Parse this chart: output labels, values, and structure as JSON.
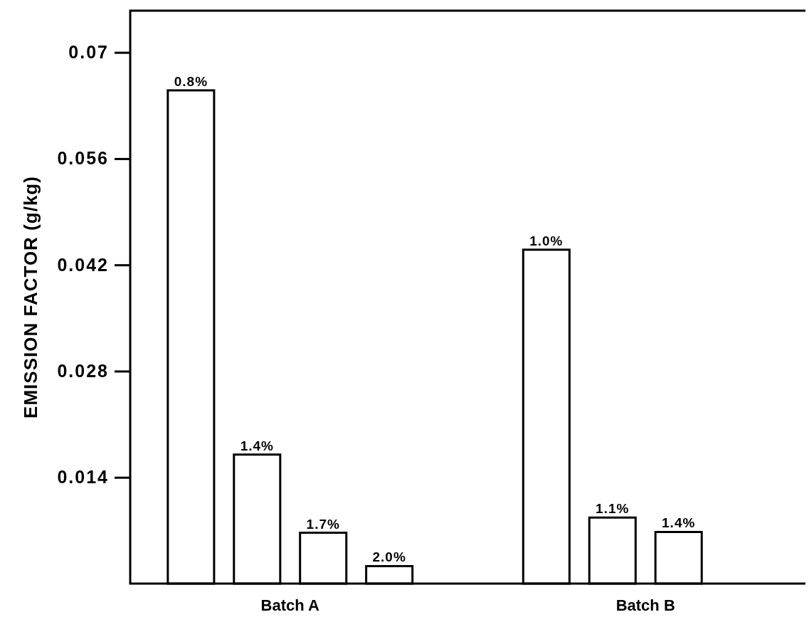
{
  "chart_data": {
    "type": "bar",
    "ylabel": "EMISSION FACTOR (g/kg)",
    "categories": [
      "Batch A",
      "Batch B"
    ],
    "series": [
      {
        "name": "0.8%",
        "color": "#ffffff",
        "values": [
          0.065,
          null
        ]
      },
      {
        "name": "1.4%",
        "color": "#ffffff",
        "values": [
          0.017,
          null
        ]
      },
      {
        "name": "1.7%",
        "color": "#ffffff",
        "values": [
          0.0067,
          null
        ]
      },
      {
        "name": "2.0%",
        "color": "#ffffff",
        "values": [
          0.0023,
          null
        ]
      },
      {
        "name": "1.0%",
        "color": "#ffffff",
        "values": [
          null,
          0.044
        ]
      },
      {
        "name": "1.1%",
        "color": "#ffffff",
        "values": [
          null,
          0.0087
        ]
      },
      {
        "name": "1.4%",
        "color": "#ffffff",
        "values": [
          null,
          0.0068
        ]
      }
    ],
    "ylim": [
      0,
      0.0755
    ],
    "yticks": [
      0.014,
      0.028,
      0.042,
      0.056,
      0.07
    ],
    "grid": false
  }
}
